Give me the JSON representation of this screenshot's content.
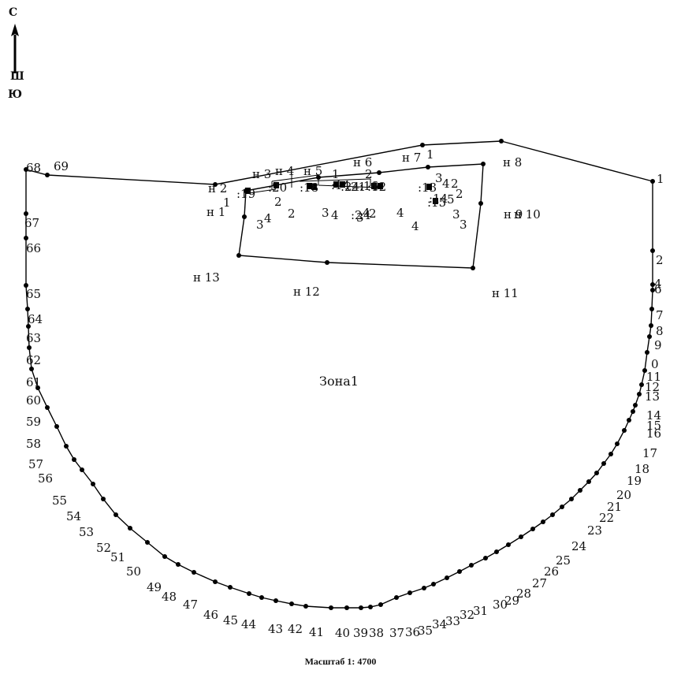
{
  "compass": {
    "north": "С",
    "south": "Ю",
    "mid_mark": "Ш"
  },
  "zone_label": "Зона1",
  "scale_label": "Масштаб 1: 4700",
  "boundary_points": [
    "1",
    "2",
    "4",
    "6",
    "7",
    "8",
    "9",
    "0",
    "11",
    "12",
    "13",
    "14",
    "15",
    "16",
    "17",
    "18",
    "19",
    "20",
    "21",
    "22",
    "23",
    "24",
    "25",
    "26",
    "27",
    "28",
    "29",
    "30",
    "31",
    "32",
    "33",
    "34",
    "35",
    "36",
    "37",
    "38",
    "39",
    "40",
    "41",
    "42",
    "43",
    "44",
    "45",
    "46",
    "47",
    "48",
    "49",
    "50",
    "51",
    "52",
    "53",
    "54",
    "55",
    "56",
    "57",
    "58",
    "59",
    "60",
    "61",
    "62",
    "63",
    "64",
    "65",
    "66",
    "67",
    "68",
    "69"
  ],
  "inner_parcel_points": [
    "н 1",
    "н 2",
    "н 3",
    "н 4",
    "н 5",
    "н 6",
    "н 7",
    "н 8",
    "н 9",
    "н 10",
    "н 11",
    "н 12",
    "н 13"
  ],
  "feature_labels": [
    "1",
    "2",
    "3",
    "4",
    "1",
    "2",
    "3",
    "4",
    "2",
    "3",
    "4",
    "3",
    "4",
    "2",
    "1",
    "2",
    "3",
    "4",
    "5",
    "2",
    "3",
    "4",
    ":19",
    ":20",
    ":18",
    ":14",
    ":16",
    ":13",
    ":15",
    ":2",
    ":4",
    ":24",
    ":21",
    ":12",
    ":14"
  ],
  "colors": {
    "line": "#000000",
    "point": "#000000",
    "background": "#ffffff"
  }
}
